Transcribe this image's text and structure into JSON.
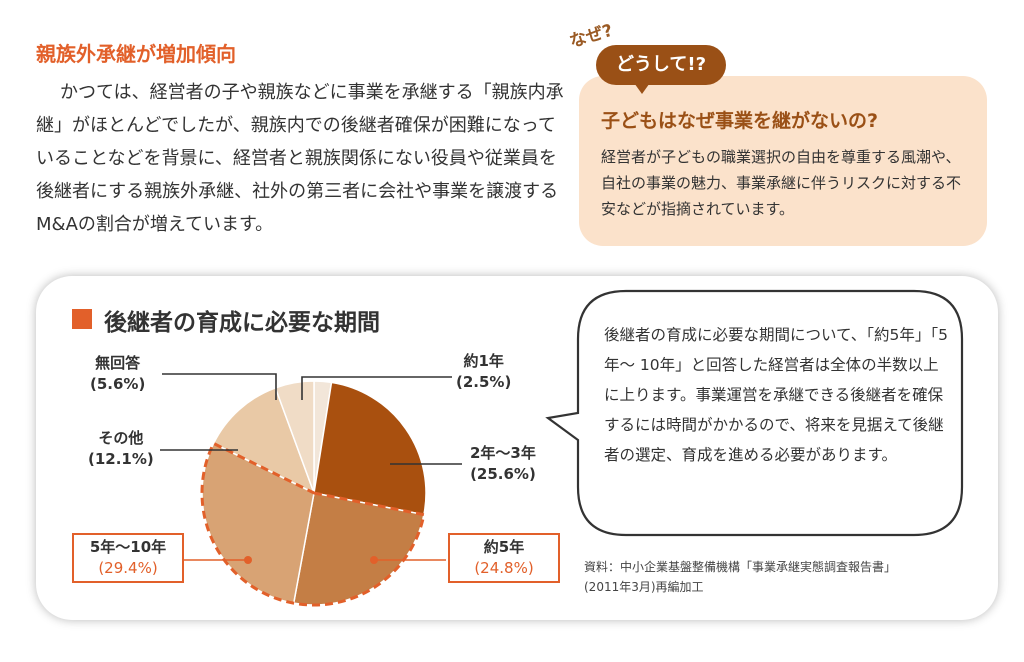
{
  "article": {
    "heading": "親族外承継が増加傾向",
    "body": "かつては、経営者の子や親族などに事業を承継する「親族内承継」がほとんどでしたが、親族内での後継者確保が困難になっていることなどを背景に、経営者と親族関係にない役員や従業員を後継者にする親族外承継、社外の第三者に会社や事業を譲渡するM&Aの割合が増えています。"
  },
  "qa": {
    "why_tag": "なぜ?",
    "doushite_tag": "どうして!?",
    "question": "子どもはなぜ事業を継がないの?",
    "answer": "経営者が子どもの職業選択の自由を尊重する風潮や、自社の事業の魅力、事業承継に伴うリスクに対する不安などが指摘されています。"
  },
  "bubble": {
    "text": "後継者の育成に必要な期間について、「約5年」「5年～ 10年」と回答した経営者は全体の半数以上に上ります。事業運営を承継できる後継者を確保するには時間がかかるので、将来を見据えて後継者の選定、育成を進める必要があります。"
  },
  "source": {
    "line1": "資料：中小企業基盤整備機構「事業承継実態調査報告書」",
    "line2": "(2011年3月)再編加工"
  },
  "chart_data": {
    "type": "pie",
    "title": "後継者の育成に必要な期間",
    "slices": [
      {
        "label": "約1年",
        "display": "(2.5%)",
        "value": 2.5,
        "color": "#f2e6d9",
        "highlight": false
      },
      {
        "label": "2年～3年",
        "display": "(25.6%)",
        "value": 25.6,
        "color": "#a9500f",
        "highlight": false
      },
      {
        "label": "約5年",
        "display": "(24.8%)",
        "value": 24.8,
        "color": "#c47e45",
        "highlight": true
      },
      {
        "label": "5年～10年",
        "display": "(29.4%)",
        "value": 29.4,
        "color": "#d8a374",
        "highlight": true
      },
      {
        "label": "その他",
        "display": "(12.1%)",
        "value": 12.1,
        "color": "#e9c9a6",
        "highlight": false
      },
      {
        "label": "無回答",
        "display": "(5.6%)",
        "value": 5.6,
        "color": "#f0dcc6",
        "highlight": false
      }
    ],
    "highlight_color": "#e2602a"
  }
}
